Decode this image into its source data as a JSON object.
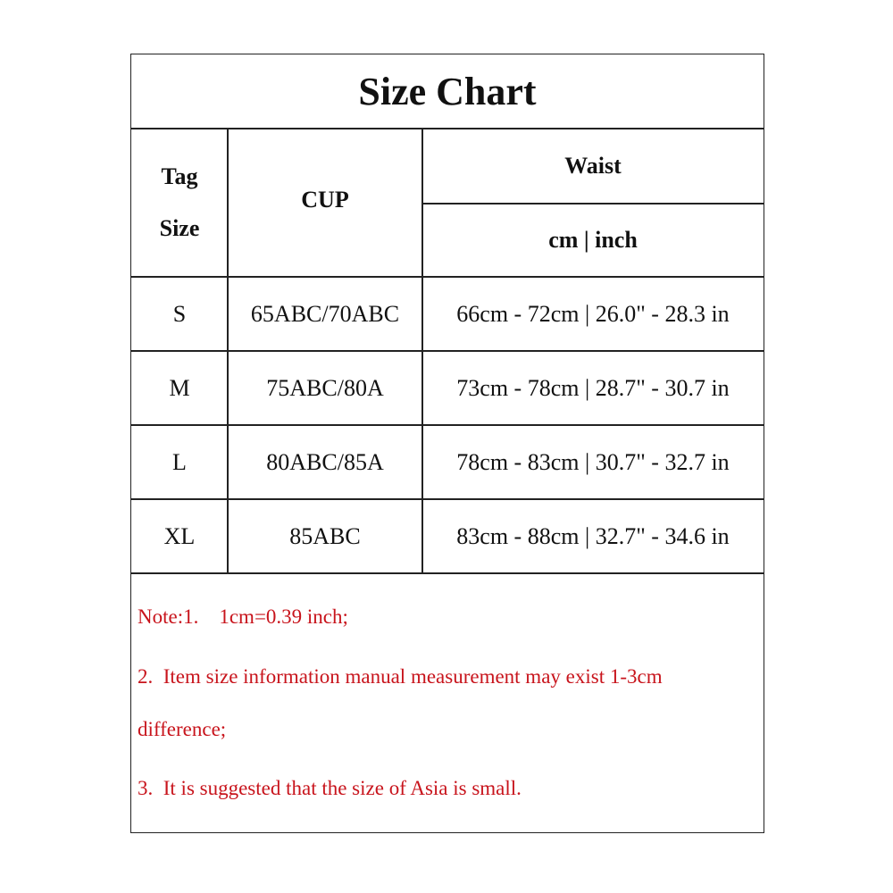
{
  "title": "Size Chart",
  "headers": {
    "tag_size_line1": "Tag",
    "tag_size_line2": "Size",
    "cup": "CUP",
    "waist": "Waist",
    "waist_units": "cm | inch"
  },
  "rows": [
    {
      "size": "S",
      "cup": "65ABC/70ABC",
      "waist": "66cm - 72cm | 26.0\" - 28.3 in"
    },
    {
      "size": "M",
      "cup": "75ABC/80A",
      "waist": "73cm - 78cm | 28.7\" - 30.7 in"
    },
    {
      "size": "L",
      "cup": "80ABC/85A",
      "waist": "78cm - 83cm | 30.7\" - 32.7 in"
    },
    {
      "size": "XL",
      "cup": "85ABC",
      "waist": "83cm - 88cm | 32.7\" - 34.6 in"
    }
  ],
  "notes": [
    "Note:1.    1cm=0.39 inch;",
    "2.  Item size information manual measurement may exist 1-3cm",
    "difference;",
    "3.  It is suggested that the size of Asia is small."
  ],
  "colors": {
    "note_text": "#c8141c",
    "border": "#222222"
  }
}
